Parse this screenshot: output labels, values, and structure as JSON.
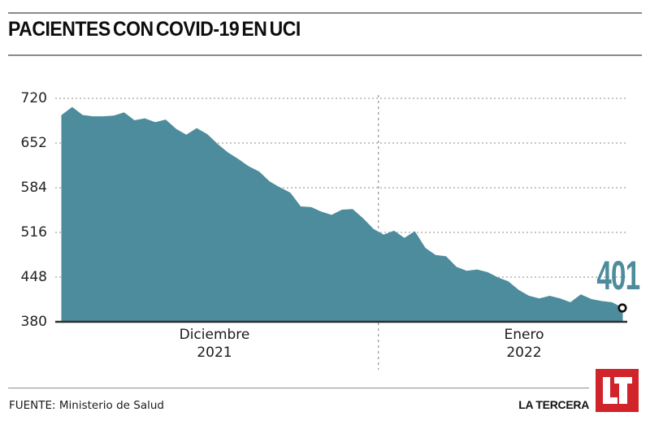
{
  "header": {
    "title": "PACIENTES CON COVID-19 EN UCI"
  },
  "chart_data": {
    "type": "area",
    "title": "PACIENTES CON COVID-19 EN UCI",
    "ylabel": "",
    "xlabel": "",
    "ylim": [
      380,
      720
    ],
    "y_ticks": [
      "720",
      "652",
      "584",
      "516",
      "448",
      "380"
    ],
    "grid": "dashed-horizontal",
    "legend": "none",
    "area_color": "#4d8c9c",
    "x_groups": [
      {
        "month": "Diciembre",
        "year": "2021"
      },
      {
        "month": "Enero",
        "year": "2022"
      }
    ],
    "series": [
      {
        "name": "Diciembre 2021",
        "values": [
          694,
          706,
          694,
          692,
          692,
          693,
          698,
          686,
          689,
          683,
          687,
          673,
          664,
          674,
          665,
          650,
          637,
          627,
          616,
          608,
          593,
          584,
          576,
          555,
          554,
          547,
          542,
          550,
          551,
          537,
          521
        ]
      },
      {
        "name": "Enero 2022",
        "values": [
          512,
          518,
          507,
          517,
          492,
          481,
          479,
          463,
          457,
          459,
          455,
          447,
          441,
          428,
          419,
          415,
          419,
          415,
          409,
          421,
          414,
          411,
          409,
          401
        ]
      }
    ],
    "end_value": 401,
    "end_label": "401",
    "end_marker": "open-circle"
  },
  "footer": {
    "source": "FUENTE: Ministerio de Salud",
    "brand": "LA TERCERA",
    "logo_text": "LT",
    "logo_color": "#d0232a"
  }
}
